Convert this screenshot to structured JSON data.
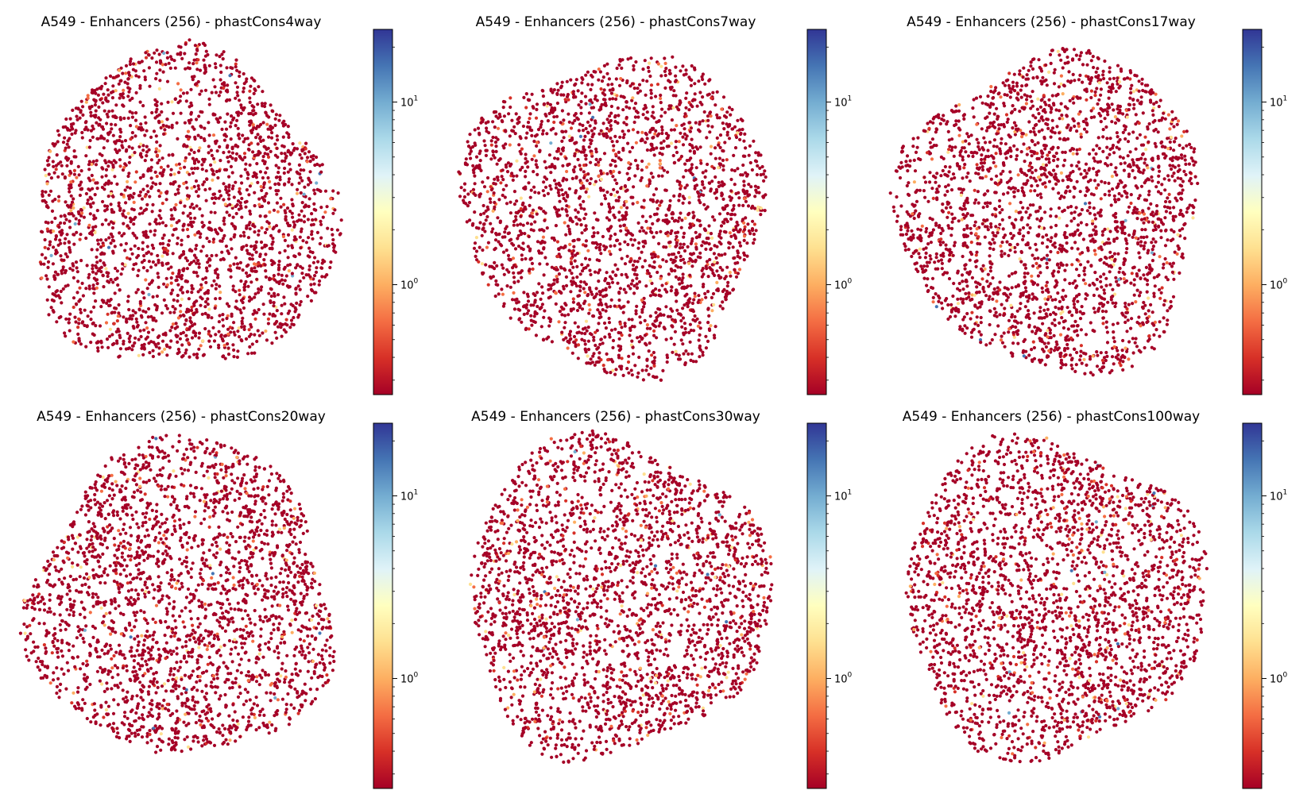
{
  "chart_data": [
    {
      "type": "scatter",
      "title": "A549 - Enhancers (256) - phastCons4way",
      "colorbar": {
        "scale": "log",
        "colormap": "RdYlBu",
        "range": [
          0.25,
          25
        ],
        "tick_values": [
          1,
          10
        ],
        "tick_labels": [
          {
            "base": "10",
            "exp": "0"
          },
          {
            "base": "10",
            "exp": "1"
          }
        ]
      },
      "point_count_estimate": 2500,
      "dominant_color": "#a50026",
      "axes_visible": false
    },
    {
      "type": "scatter",
      "title": "A549 - Enhancers (256) - phastCons7way",
      "colorbar": {
        "scale": "log",
        "colormap": "RdYlBu",
        "range": [
          0.25,
          25
        ],
        "tick_values": [
          1,
          10
        ],
        "tick_labels": [
          {
            "base": "10",
            "exp": "0"
          },
          {
            "base": "10",
            "exp": "1"
          }
        ]
      },
      "point_count_estimate": 2500,
      "dominant_color": "#a50026",
      "axes_visible": false
    },
    {
      "type": "scatter",
      "title": "A549 - Enhancers (256) - phastCons17way",
      "colorbar": {
        "scale": "log",
        "colormap": "RdYlBu",
        "range": [
          0.25,
          25
        ],
        "tick_values": [
          1,
          10
        ],
        "tick_labels": [
          {
            "base": "10",
            "exp": "0"
          },
          {
            "base": "10",
            "exp": "1"
          }
        ]
      },
      "point_count_estimate": 2500,
      "dominant_color": "#a50026",
      "axes_visible": false
    },
    {
      "type": "scatter",
      "title": "A549 - Enhancers (256) - phastCons20way",
      "colorbar": {
        "scale": "log",
        "colormap": "RdYlBu",
        "range": [
          0.25,
          25
        ],
        "tick_values": [
          1,
          10
        ],
        "tick_labels": [
          {
            "base": "10",
            "exp": "0"
          },
          {
            "base": "10",
            "exp": "1"
          }
        ]
      },
      "point_count_estimate": 2500,
      "dominant_color": "#a50026",
      "axes_visible": false
    },
    {
      "type": "scatter",
      "title": "A549 - Enhancers (256) - phastCons30way",
      "colorbar": {
        "scale": "log",
        "colormap": "RdYlBu",
        "range": [
          0.25,
          25
        ],
        "tick_values": [
          1,
          10
        ],
        "tick_labels": [
          {
            "base": "10",
            "exp": "0"
          },
          {
            "base": "10",
            "exp": "1"
          }
        ]
      },
      "point_count_estimate": 2500,
      "dominant_color": "#a50026",
      "axes_visible": false
    },
    {
      "type": "scatter",
      "title": "A549 - Enhancers (256) - phastCons100way",
      "colorbar": {
        "scale": "log",
        "colormap": "RdYlBu",
        "range": [
          0.25,
          25
        ],
        "tick_values": [
          1,
          10
        ],
        "tick_labels": [
          {
            "base": "10",
            "exp": "0"
          },
          {
            "base": "10",
            "exp": "1"
          }
        ]
      },
      "point_count_estimate": 2500,
      "dominant_color": "#a50026",
      "axes_visible": false
    }
  ]
}
